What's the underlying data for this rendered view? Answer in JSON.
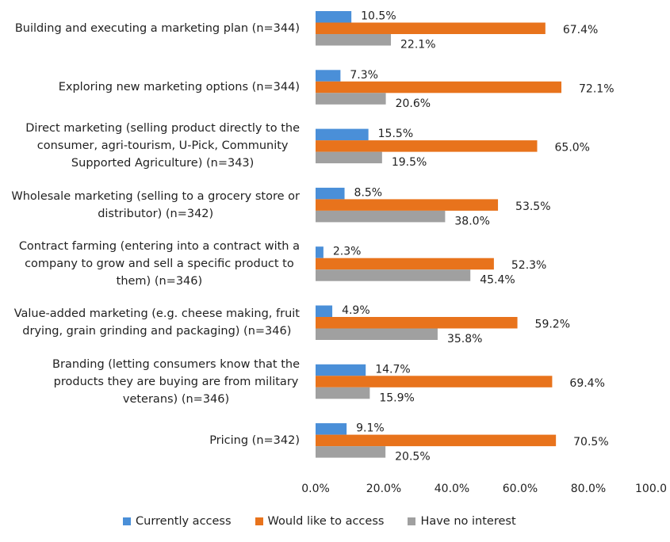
{
  "chart_data": {
    "type": "bar",
    "orientation": "horizontal",
    "title": "",
    "xlabel": "",
    "ylabel": "",
    "xlim": [
      0,
      100
    ],
    "grid": false,
    "legend_position": "bottom",
    "categories": [
      "Building and executing a marketing plan (n=344)",
      "Exploring new marketing options (n=344)",
      "Direct marketing (selling product directly to the\nconsumer, agri-tourism, U-Pick, Community\nSupported Agriculture) (n=343)",
      "Wholesale marketing (selling to a grocery store or\ndistributor) (n=342)",
      "Contract farming (entering into a contract with a\ncompany to grow and sell a specific product to\nthem) (n=346)",
      "Value-added marketing (e.g. cheese making, fruit\ndrying, grain grinding and packaging) (n=346)",
      "Branding (letting consumers know that the\nproducts they are buying are from military\nveterans) (n=346)",
      "Pricing (n=342)"
    ],
    "series": [
      {
        "name": "Currently access",
        "color": "#4a8fd8",
        "values": [
          10.5,
          7.3,
          15.5,
          8.5,
          2.3,
          4.9,
          14.7,
          9.1
        ],
        "labels": [
          "10.5%",
          "7.3%",
          "15.5%",
          "8.5%",
          "2.3%",
          "4.9%",
          "14.7%",
          "9.1%"
        ]
      },
      {
        "name": "Would like to access",
        "color": "#e8731c",
        "values": [
          67.4,
          72.1,
          65.0,
          53.5,
          52.3,
          59.2,
          69.4,
          70.5
        ],
        "labels": [
          "67.4%",
          "72.1%",
          "65.0%",
          "53.5%",
          "52.3%",
          "59.2%",
          "69.4%",
          "70.5%"
        ]
      },
      {
        "name": "Have no interest",
        "color": "#a0a0a0",
        "values": [
          22.1,
          20.6,
          19.5,
          38.0,
          45.4,
          35.8,
          15.9,
          20.5
        ],
        "labels": [
          "22.1%",
          "20.6%",
          "19.5%",
          "38.0%",
          "45.4%",
          "35.8%",
          "15.9%",
          "20.5%"
        ]
      }
    ],
    "x_ticks": [
      "0.0%",
      "20.0%",
      "40.0%",
      "60.0%",
      "80.0%",
      "100.0"
    ]
  }
}
